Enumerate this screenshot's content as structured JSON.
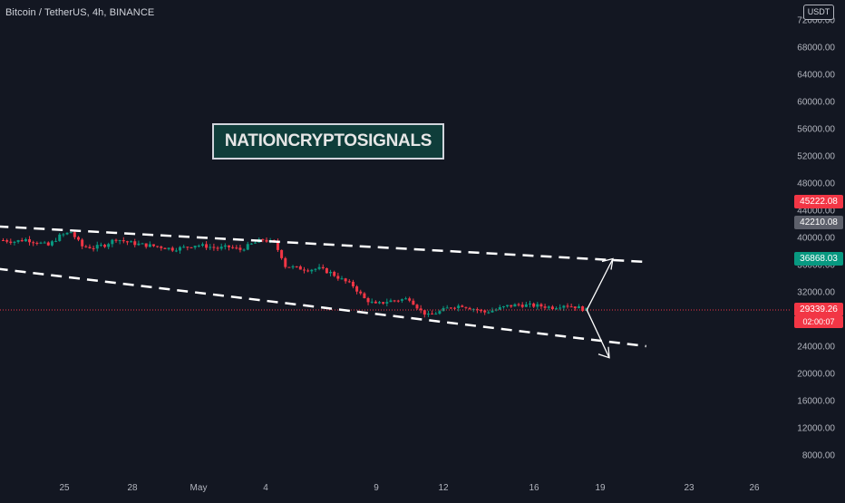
{
  "header": {
    "symbol_title": "Bitcoin / TetherUS, 4h, BINANCE",
    "currency": "USDT"
  },
  "watermark": {
    "text": "NATIONCRYPTOSIGNALS"
  },
  "price_tags": [
    {
      "label": "45222.08",
      "color": "#f23645"
    },
    {
      "label": "42210.08",
      "color": "#5d606b"
    },
    {
      "label": "36868.03",
      "color": "#089981"
    },
    {
      "label": "29339.26",
      "color": "#f23645"
    }
  ],
  "countdown": "02:00:07",
  "chart_data": {
    "type": "candlestick",
    "title": "Bitcoin / TetherUS, 4h, BINANCE",
    "y_axis": {
      "unit": "USDT",
      "ticks": [
        "72000.00",
        "68000.00",
        "64000.00",
        "60000.00",
        "56000.00",
        "52000.00",
        "48000.00",
        "44000.00",
        "40000.00",
        "36000.00",
        "32000.00",
        "28000.00",
        "24000.00",
        "20000.00",
        "16000.00",
        "12000.00",
        "8000.00"
      ],
      "range": [
        4000,
        74000
      ]
    },
    "x_axis": {
      "ticks": [
        "25",
        "28",
        "May",
        "4",
        "9",
        "12",
        "16",
        "19",
        "23",
        "26"
      ]
    },
    "last_price": 29339.26,
    "price_path": [
      [
        0,
        39600
      ],
      [
        3,
        39400
      ],
      [
        6,
        39700
      ],
      [
        9,
        39300
      ],
      [
        12,
        38800
      ],
      [
        15,
        40200
      ],
      [
        18,
        40800
      ],
      [
        21,
        38700
      ],
      [
        24,
        38500
      ],
      [
        27,
        38900
      ],
      [
        30,
        39800
      ],
      [
        33,
        39300
      ],
      [
        36,
        39000
      ],
      [
        39,
        38800
      ],
      [
        42,
        38600
      ],
      [
        45,
        38300
      ],
      [
        48,
        38500
      ],
      [
        51,
        38900
      ],
      [
        54,
        38700
      ],
      [
        57,
        38400
      ],
      [
        60,
        38600
      ],
      [
        63,
        38200
      ],
      [
        66,
        39000
      ],
      [
        69,
        39700
      ],
      [
        72,
        39200
      ],
      [
        74,
        37200
      ],
      [
        75,
        35800
      ],
      [
        78,
        35500
      ],
      [
        81,
        35300
      ],
      [
        84,
        35400
      ],
      [
        87,
        34800
      ],
      [
        90,
        33800
      ],
      [
        93,
        32900
      ],
      [
        96,
        31000
      ],
      [
        99,
        30100
      ],
      [
        102,
        30600
      ],
      [
        105,
        30800
      ],
      [
        108,
        31000
      ],
      [
        111,
        29200
      ],
      [
        113,
        28500
      ],
      [
        116,
        29100
      ],
      [
        119,
        29800
      ],
      [
        122,
        30000
      ],
      [
        125,
        29500
      ],
      [
        128,
        29000
      ],
      [
        131,
        29400
      ],
      [
        134,
        29900
      ],
      [
        137,
        30100
      ],
      [
        140,
        30000
      ],
      [
        143,
        29900
      ],
      [
        146,
        29700
      ],
      [
        149,
        30100
      ],
      [
        152,
        29800
      ],
      [
        155,
        29339
      ]
    ],
    "channel": {
      "upper": {
        "start": [
          -30,
          42500
        ],
        "end": [
          205,
          36400
        ]
      },
      "lower": {
        "start": [
          -30,
          37300
        ],
        "end": [
          205,
          24000
        ]
      }
    },
    "projection_targets": [
      36868.03,
      22300
    ],
    "grid": false
  }
}
